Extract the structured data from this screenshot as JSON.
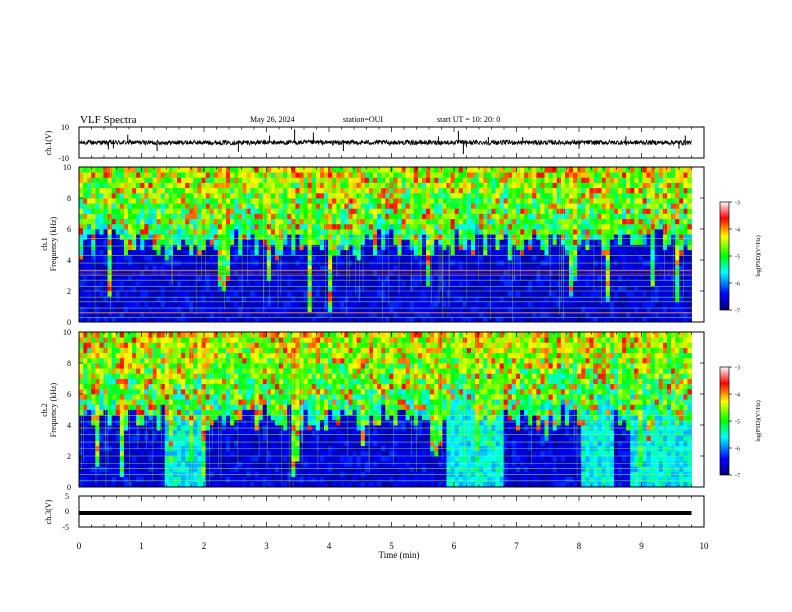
{
  "header": {
    "title": "VLF Spectra",
    "date": "May 26, 2024",
    "station": "station=OUI",
    "start_ut": "start  UT =   10: 20: 0"
  },
  "chart_data": [
    {
      "type": "line",
      "panel": "waveform-ch1",
      "ylabel": "ch.1(V)",
      "ylim": [
        -10,
        10
      ],
      "y_ticks": [
        10,
        -10
      ],
      "xlim": [
        0,
        10
      ],
      "trace_color": "#000000",
      "data_end_min": 9.8,
      "baseline_v": 0,
      "noise_amplitude_v": 1.5,
      "spikes": [
        {
          "t": 0.47,
          "v": -4.5
        },
        {
          "t": 0.55,
          "v": -3.8
        },
        {
          "t": 0.78,
          "v": 5.0
        },
        {
          "t": 1.25,
          "v": -5.5
        },
        {
          "t": 2.55,
          "v": -6.0
        },
        {
          "t": 3.05,
          "v": 4.5
        },
        {
          "t": 3.45,
          "v": 8.5
        },
        {
          "t": 3.75,
          "v": 6.5
        },
        {
          "t": 4.23,
          "v": -5.5
        },
        {
          "t": 5.75,
          "v": 4.0
        },
        {
          "t": 6.07,
          "v": 7.5
        },
        {
          "t": 6.15,
          "v": -7.5
        },
        {
          "t": 6.2,
          "v": -3.0
        },
        {
          "t": 6.55,
          "v": 3.5
        },
        {
          "t": 7.1,
          "v": 3.5
        },
        {
          "t": 8.0,
          "v": -4.0
        },
        {
          "t": 8.75,
          "v": 4.0
        },
        {
          "t": 9.6,
          "v": -4.0
        },
        {
          "t": 9.7,
          "v": 4.5
        }
      ]
    },
    {
      "type": "heatmap",
      "panel": "spectrogram-ch1",
      "ylabel": "Frequency (kHz)",
      "channel_label": "ch.1",
      "ylim": [
        0,
        10
      ],
      "y_ticks": [
        0,
        2,
        4,
        6,
        8,
        10
      ],
      "xlim": [
        0,
        10
      ],
      "data_end_min": 9.8,
      "noise_floor_khz": 5.0,
      "colorbar": {
        "label": "log(PSD)(V²/Hz)",
        "range": [
          -7,
          -3
        ],
        "ticks": [
          -3,
          -4,
          -5,
          -6,
          -7
        ],
        "colors": [
          "#000080",
          "#0000ff",
          "#00ffff",
          "#00ff00",
          "#ffff00",
          "#ff0000",
          "#ffffff"
        ]
      },
      "tonal_lines_khz": [
        0.3,
        0.6,
        0.9,
        1.3,
        1.6,
        2.0,
        2.3,
        2.7,
        3.0,
        3.3,
        3.8,
        4.3,
        4.9,
        5.4
      ],
      "strong_lines_khz": [
        0.55,
        3.1,
        3.35
      ]
    },
    {
      "type": "heatmap",
      "panel": "spectrogram-ch2",
      "ylabel": "Frequency (kHz)",
      "channel_label": "ch.2",
      "ylim": [
        0,
        10
      ],
      "y_ticks": [
        0,
        2,
        4,
        6,
        8,
        10
      ],
      "xlim": [
        0,
        10
      ],
      "data_end_min": 9.8,
      "noise_floor_khz": 4.5,
      "colorbar": {
        "label": "log(PSD)(V²/Hz)",
        "range": [
          -7,
          -3
        ],
        "ticks": [
          -3,
          -4,
          -5,
          -6,
          -7
        ]
      },
      "tonal_lines_khz": [
        0.4,
        0.8,
        1.2,
        1.5,
        2.0,
        2.5,
        2.9,
        3.4,
        3.8,
        4.2,
        4.6
      ],
      "cyan_segments_min": [
        [
          1.35,
          2.05
        ],
        [
          5.85,
          6.8
        ],
        [
          8.05,
          8.55
        ],
        [
          8.8,
          9.8
        ]
      ]
    },
    {
      "type": "line",
      "panel": "waveform-ch3",
      "ylabel": "ch.3(V)",
      "ylim": [
        -5,
        5
      ],
      "y_ticks": [
        5,
        0,
        -5
      ],
      "xlim": [
        0,
        10
      ],
      "xlabel": "Time (min)",
      "x_ticks": [
        0,
        1,
        2,
        3,
        4,
        5,
        6,
        7,
        8,
        9,
        10
      ],
      "data_end_min": 9.8,
      "level_v": -0.5
    }
  ]
}
